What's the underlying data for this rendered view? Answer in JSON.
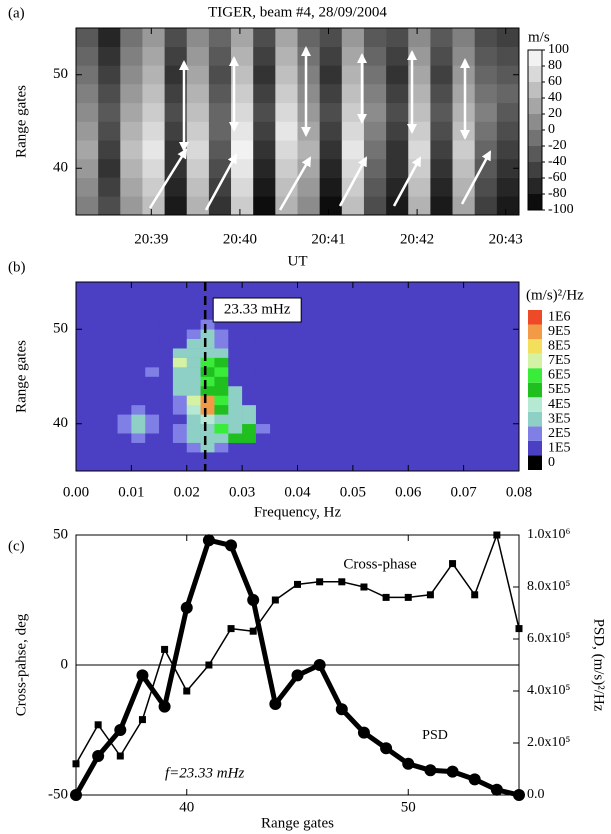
{
  "chart_data": [
    {
      "type": "heatmap",
      "panel_label": "(a)",
      "title": "TIGER, beam #4, 28/09/2004",
      "x_label": "UT",
      "y_label": "Range gates",
      "x": [
        38.15,
        38.4,
        38.65,
        38.9,
        39.15,
        39.4,
        39.65,
        39.9,
        40.15,
        40.4,
        40.65,
        40.9,
        41.15,
        41.4,
        41.65,
        41.9,
        42.15,
        42.4,
        42.65,
        42.9,
        43.15
      ],
      "y": [
        35,
        37,
        39,
        41,
        43,
        45,
        47,
        49,
        51,
        53,
        55
      ],
      "z": [
        [
          0,
          -40,
          20,
          50,
          -80,
          40,
          -60,
          60,
          -90,
          40,
          10,
          -90,
          50,
          -40,
          -80,
          40,
          -80,
          30,
          -50,
          -80
        ],
        [
          10,
          -50,
          30,
          60,
          -70,
          50,
          -50,
          70,
          -80,
          50,
          20,
          -80,
          60,
          -30,
          -70,
          50,
          -70,
          40,
          -40,
          -70
        ],
        [
          20,
          -60,
          40,
          70,
          -60,
          60,
          -40,
          80,
          -70,
          60,
          30,
          -70,
          70,
          -20,
          -60,
          60,
          -60,
          50,
          -30,
          -60
        ],
        [
          30,
          -50,
          50,
          80,
          -60,
          70,
          -30,
          90,
          -60,
          70,
          40,
          -60,
          80,
          -10,
          -60,
          70,
          -50,
          60,
          -20,
          -50
        ],
        [
          20,
          -40,
          40,
          70,
          -50,
          60,
          -20,
          80,
          -50,
          80,
          30,
          -50,
          70,
          0,
          -50,
          60,
          -40,
          50,
          -10,
          -40
        ],
        [
          10,
          -30,
          30,
          60,
          -40,
          50,
          -20,
          70,
          -40,
          70,
          20,
          -40,
          60,
          10,
          -40,
          50,
          -30,
          40,
          0,
          -30
        ],
        [
          0,
          -40,
          20,
          50,
          -50,
          40,
          -30,
          60,
          -50,
          60,
          10,
          -50,
          50,
          0,
          -50,
          40,
          -40,
          30,
          -10,
          -20
        ],
        [
          -10,
          -50,
          10,
          40,
          -60,
          30,
          -40,
          50,
          -60,
          50,
          0,
          -60,
          40,
          -10,
          -60,
          30,
          -50,
          20,
          -20,
          -30
        ],
        [
          -20,
          -60,
          0,
          30,
          -50,
          20,
          -30,
          40,
          -50,
          40,
          -10,
          -50,
          30,
          -20,
          -50,
          20,
          -40,
          10,
          -30,
          -40
        ],
        [
          -30,
          -70,
          -10,
          20,
          -40,
          10,
          -20,
          30,
          -40,
          30,
          -20,
          -40,
          20,
          -30,
          -40,
          10,
          -30,
          0,
          -40,
          -50
        ]
      ],
      "xlim": [
        38.15,
        43.15
      ],
      "ylim": [
        35,
        55
      ],
      "xticks": [
        {
          "value": 39,
          "label": "20:39"
        },
        {
          "value": 40,
          "label": "20:40"
        },
        {
          "value": 41,
          "label": "20:41"
        },
        {
          "value": 42,
          "label": "20:42"
        },
        {
          "value": 43,
          "label": "20:43"
        }
      ],
      "yticks": [
        40,
        50
      ],
      "colormap": "gray",
      "colorbar": {
        "label": "m/s",
        "ticks": [
          100,
          80,
          60,
          40,
          20,
          0,
          -20,
          -40,
          -60,
          -80,
          -100
        ]
      }
    },
    {
      "type": "heatmap",
      "panel_label": "(b)",
      "x_label": "Frequency, Hz",
      "y_label": "Range gates",
      "x": [
        0.0075,
        0.01,
        0.0125,
        0.015,
        0.0175,
        0.02,
        0.0225,
        0.025,
        0.0275,
        0.03,
        0.0325,
        0.035
      ],
      "y": [
        37,
        38,
        39,
        40,
        41,
        42,
        43,
        44,
        45,
        46,
        47,
        48,
        49,
        50,
        51
      ],
      "z": [
        [
          150000,
          150000,
          150000,
          150000,
          150000,
          250000,
          350000,
          250000,
          150000,
          150000,
          150000
        ],
        [
          150000,
          250000,
          150000,
          150000,
          250000,
          350000,
          350000,
          350000,
          550000,
          550000,
          150000
        ],
        [
          250000,
          350000,
          250000,
          150000,
          250000,
          350000,
          350000,
          650000,
          350000,
          550000,
          250000
        ],
        [
          250000,
          350000,
          250000,
          150000,
          150000,
          350000,
          450000,
          350000,
          350000,
          350000,
          150000
        ],
        [
          150000,
          250000,
          150000,
          150000,
          250000,
          450000,
          950000,
          550000,
          350000,
          350000,
          150000
        ],
        [
          150000,
          150000,
          150000,
          150000,
          250000,
          750000,
          950000,
          650000,
          350000,
          150000,
          150000
        ],
        [
          150000,
          150000,
          150000,
          150000,
          350000,
          350000,
          550000,
          550000,
          350000,
          150000,
          150000
        ],
        [
          150000,
          150000,
          150000,
          150000,
          350000,
          350000,
          650000,
          550000,
          150000,
          150000,
          150000
        ],
        [
          150000,
          150000,
          250000,
          150000,
          350000,
          350000,
          550000,
          650000,
          150000,
          150000,
          150000
        ],
        [
          150000,
          150000,
          150000,
          150000,
          750000,
          350000,
          650000,
          550000,
          150000,
          150000,
          150000
        ],
        [
          150000,
          150000,
          150000,
          150000,
          350000,
          350000,
          350000,
          350000,
          150000,
          150000,
          150000
        ],
        [
          150000,
          150000,
          150000,
          150000,
          150000,
          350000,
          350000,
          250000,
          150000,
          150000,
          150000
        ],
        [
          150000,
          150000,
          150000,
          150000,
          150000,
          250000,
          350000,
          250000,
          150000,
          150000,
          150000
        ],
        [
          150000,
          150000,
          150000,
          150000,
          150000,
          150000,
          250000,
          150000,
          150000,
          150000,
          150000
        ]
      ],
      "xlim": [
        0,
        0.08
      ],
      "ylim": [
        35,
        55
      ],
      "xticks": [
        {
          "value": 0,
          "label": "0.00"
        },
        0.01,
        0.02,
        0.03,
        0.04,
        0.05,
        0.06,
        0.07,
        0.08
      ],
      "yticks": [
        40,
        50
      ],
      "background": "#4b3fc4",
      "annotation": {
        "text": "23.33 mHz",
        "x": 0.02333
      },
      "colorbar": {
        "label": "(m/s)²/Hz",
        "ticks": [
          0,
          {
            "value": 100000,
            "label": "1E5"
          },
          {
            "value": 200000,
            "label": "2E5"
          },
          {
            "value": 300000,
            "label": "3E5"
          },
          {
            "value": 400000,
            "label": "4E5"
          },
          {
            "value": 500000,
            "label": "5E5"
          },
          {
            "value": 600000,
            "label": "6E5"
          },
          {
            "value": 700000,
            "label": "7E5"
          },
          {
            "value": 800000,
            "label": "8E5"
          },
          {
            "value": 900000,
            "label": "9E5"
          },
          {
            "value": 1000000,
            "label": "1E6"
          }
        ],
        "colors": [
          "#000000",
          "#4b3fc4",
          "#7f7fe6",
          "#8ecfc6",
          "#b6e9d3",
          "#1fbf1f",
          "#39ec39",
          "#d3f2a4",
          "#f3df5c",
          "#f29a45",
          "#ef4a28"
        ]
      }
    },
    {
      "type": "line",
      "panel_label": "(c)",
      "x_label": "Range gates",
      "y_label": "Cross-pahse, deg",
      "y2_label": "PSD, (m/s)²/Hz",
      "annotation": "f=23.33 mHz",
      "x": [
        35,
        36,
        37,
        38,
        39,
        40,
        41,
        42,
        43,
        44,
        45,
        46,
        47,
        48,
        49,
        50,
        51,
        52,
        53,
        54,
        55
      ],
      "xlim": [
        35,
        55
      ],
      "xticks": [
        40,
        50
      ],
      "ylim": [
        -50,
        50
      ],
      "yticks": [
        -50,
        0,
        50
      ],
      "y2lim": [
        0,
        1000000
      ],
      "y2ticks": [
        {
          "value": 0,
          "label": "0.0"
        },
        {
          "value": 200000,
          "label": "2.0x10⁵"
        },
        {
          "value": 400000,
          "label": "4.0x10⁵"
        },
        {
          "value": 600000,
          "label": "6.0x10⁵"
        },
        {
          "value": 800000,
          "label": "8.0x10⁵"
        },
        {
          "value": 1000000,
          "label": "1.0x10⁶"
        }
      ],
      "zero_line": true,
      "series": [
        {
          "name": "Cross-phase",
          "color": "#000000",
          "marker": "square",
          "values": [
            -38,
            -23,
            -35,
            -21,
            6,
            -10,
            0,
            14,
            13,
            25,
            31,
            32,
            32,
            30,
            26,
            26,
            27,
            39,
            27,
            50,
            14
          ]
        },
        {
          "name": "PSD",
          "color": "#000000",
          "marker": "circle",
          "axis": "y2",
          "values": [
            0,
            150000,
            250000,
            460000,
            340000,
            720000,
            980000,
            960000,
            750000,
            350000,
            460000,
            500000,
            330000,
            240000,
            180000,
            120000,
            95000,
            90000,
            60000,
            20000,
            0
          ]
        }
      ]
    }
  ]
}
